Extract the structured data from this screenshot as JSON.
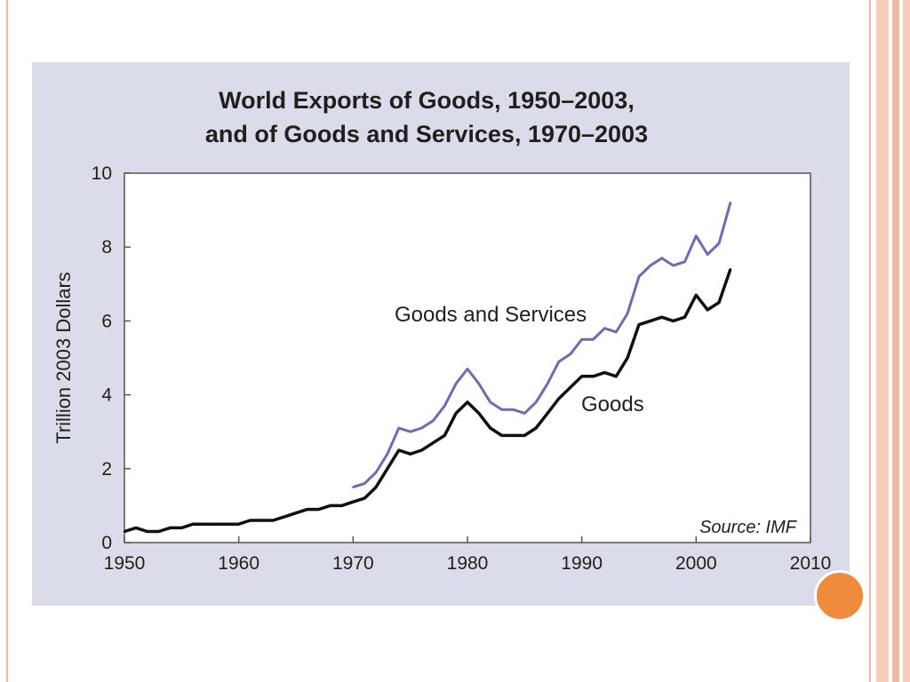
{
  "colors": {
    "goods_line": "#111111",
    "goods_services_line": "#6a6cb5",
    "panel_bg": "#dadcea",
    "accent": "#f08a3c"
  },
  "chart_data": {
    "type": "line",
    "title_line1": "World Exports of Goods, 1950–2003,",
    "title_line2": "and of Goods and Services, 1970–2003",
    "ylabel": "Trillion 2003 Dollars",
    "xlabel": "",
    "xlim": [
      1950,
      2010
    ],
    "ylim": [
      0,
      10
    ],
    "x_ticks": [
      "1950",
      "1960",
      "1970",
      "1980",
      "1990",
      "2000",
      "2010"
    ],
    "y_ticks": [
      "0",
      "2",
      "4",
      "6",
      "8",
      "10"
    ],
    "source": "Source: IMF",
    "annotations": {
      "goods_services": "Goods and Services",
      "goods": "Goods"
    },
    "series": [
      {
        "name": "Goods",
        "x": [
          1950,
          1951,
          1952,
          1953,
          1954,
          1955,
          1956,
          1957,
          1958,
          1959,
          1960,
          1961,
          1962,
          1963,
          1964,
          1965,
          1966,
          1967,
          1968,
          1969,
          1970,
          1971,
          1972,
          1973,
          1974,
          1975,
          1976,
          1977,
          1978,
          1979,
          1980,
          1981,
          1982,
          1983,
          1984,
          1985,
          1986,
          1987,
          1988,
          1989,
          1990,
          1991,
          1992,
          1993,
          1994,
          1995,
          1996,
          1997,
          1998,
          1999,
          2000,
          2001,
          2002,
          2003
        ],
        "values": [
          0.3,
          0.4,
          0.3,
          0.3,
          0.4,
          0.4,
          0.5,
          0.5,
          0.5,
          0.5,
          0.5,
          0.6,
          0.6,
          0.6,
          0.7,
          0.8,
          0.9,
          0.9,
          1.0,
          1.0,
          1.1,
          1.2,
          1.5,
          2.0,
          2.5,
          2.4,
          2.5,
          2.7,
          2.9,
          3.5,
          3.8,
          3.5,
          3.1,
          2.9,
          2.9,
          2.9,
          3.1,
          3.5,
          3.9,
          4.2,
          4.5,
          4.5,
          4.6,
          4.5,
          5.0,
          5.9,
          6.0,
          6.1,
          6.0,
          6.1,
          6.7,
          6.3,
          6.5,
          7.4
        ]
      },
      {
        "name": "Goods and Services",
        "x": [
          1970,
          1971,
          1972,
          1973,
          1974,
          1975,
          1976,
          1977,
          1978,
          1979,
          1980,
          1981,
          1982,
          1983,
          1984,
          1985,
          1986,
          1987,
          1988,
          1989,
          1990,
          1991,
          1992,
          1993,
          1994,
          1995,
          1996,
          1997,
          1998,
          1999,
          2000,
          2001,
          2002,
          2003
        ],
        "values": [
          1.5,
          1.6,
          1.9,
          2.4,
          3.1,
          3.0,
          3.1,
          3.3,
          3.7,
          4.3,
          4.7,
          4.3,
          3.8,
          3.6,
          3.6,
          3.5,
          3.8,
          4.3,
          4.9,
          5.1,
          5.5,
          5.5,
          5.8,
          5.7,
          6.2,
          7.2,
          7.5,
          7.7,
          7.5,
          7.6,
          8.3,
          7.8,
          8.1,
          9.2
        ]
      }
    ]
  }
}
